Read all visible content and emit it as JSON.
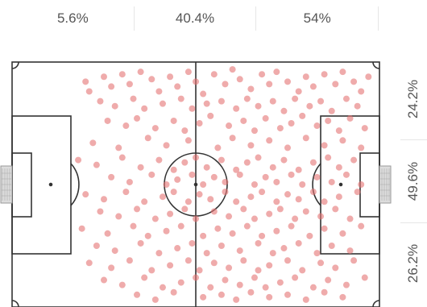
{
  "thirds": [
    "5.6%",
    "40.4%",
    "54%"
  ],
  "lanes": [
    "24.2%",
    "49.6%",
    "26.2%"
  ],
  "colors": {
    "dot": "#e57373",
    "pitch_line": "#333333",
    "label": "#555555"
  },
  "chart_data": {
    "type": "scatter",
    "title": "",
    "xlabel": "",
    "ylabel": "",
    "xlim": [
      0,
      100
    ],
    "ylim": [
      0,
      100
    ],
    "grid": false,
    "zones": {
      "thirds_x": [
        {
          "label": "5.6%",
          "range": [
            0,
            33.3
          ]
        },
        {
          "label": "40.4%",
          "range": [
            33.3,
            66.7
          ]
        },
        {
          "label": "54%",
          "range": [
            66.7,
            100
          ]
        }
      ],
      "lanes_y": [
        {
          "label": "24.2%",
          "range": [
            0,
            33.3
          ]
        },
        {
          "label": "49.6%",
          "range": [
            33.3,
            66.7
          ]
        },
        {
          "label": "26.2%",
          "range": [
            66.7,
            100
          ]
        }
      ]
    },
    "points": [
      [
        20,
        8
      ],
      [
        21,
        12
      ],
      [
        25,
        6
      ],
      [
        27,
        10
      ],
      [
        30,
        5
      ],
      [
        32,
        9
      ],
      [
        35,
        4
      ],
      [
        38,
        7
      ],
      [
        40,
        12
      ],
      [
        43,
        6
      ],
      [
        45,
        10
      ],
      [
        48,
        4
      ],
      [
        50,
        8
      ],
      [
        52,
        13
      ],
      [
        55,
        5
      ],
      [
        58,
        9
      ],
      [
        60,
        3
      ],
      [
        62,
        7
      ],
      [
        65,
        11
      ],
      [
        68,
        5
      ],
      [
        70,
        9
      ],
      [
        72,
        4
      ],
      [
        75,
        8
      ],
      [
        78,
        12
      ],
      [
        80,
        6
      ],
      [
        82,
        10
      ],
      [
        85,
        5
      ],
      [
        88,
        9
      ],
      [
        90,
        4
      ],
      [
        93,
        8
      ],
      [
        95,
        12
      ],
      [
        97,
        6
      ],
      [
        24,
        16
      ],
      [
        28,
        18
      ],
      [
        33,
        15
      ],
      [
        36,
        19
      ],
      [
        41,
        17
      ],
      [
        46,
        15
      ],
      [
        49,
        19
      ],
      [
        53,
        17
      ],
      [
        57,
        16
      ],
      [
        61,
        19
      ],
      [
        64,
        15
      ],
      [
        67,
        18
      ],
      [
        71,
        16
      ],
      [
        74,
        20
      ],
      [
        77,
        15
      ],
      [
        81,
        18
      ],
      [
        84,
        16
      ],
      [
        87,
        20
      ],
      [
        91,
        15
      ],
      [
        94,
        18
      ],
      [
        26,
        24
      ],
      [
        31,
        26
      ],
      [
        34,
        23
      ],
      [
        39,
        27
      ],
      [
        44,
        24
      ],
      [
        47,
        28
      ],
      [
        51,
        25
      ],
      [
        54,
        22
      ],
      [
        59,
        26
      ],
      [
        63,
        24
      ],
      [
        66,
        28
      ],
      [
        69,
        23
      ],
      [
        73,
        27
      ],
      [
        76,
        25
      ],
      [
        79,
        22
      ],
      [
        83,
        26
      ],
      [
        86,
        24
      ],
      [
        89,
        28
      ],
      [
        92,
        23
      ],
      [
        96,
        27
      ],
      [
        22,
        33
      ],
      [
        29,
        35
      ],
      [
        37,
        31
      ],
      [
        42,
        34
      ],
      [
        48,
        32
      ],
      [
        56,
        35
      ],
      [
        60,
        31
      ],
      [
        65,
        34
      ],
      [
        70,
        32
      ],
      [
        75,
        35
      ],
      [
        80,
        31
      ],
      [
        85,
        34
      ],
      [
        90,
        32
      ],
      [
        95,
        35
      ],
      [
        18,
        40
      ],
      [
        23,
        42
      ],
      [
        30,
        39
      ],
      [
        35,
        43
      ],
      [
        40,
        40
      ],
      [
        44,
        44
      ],
      [
        47,
        41
      ],
      [
        50,
        39
      ],
      [
        53,
        43
      ],
      [
        57,
        40
      ],
      [
        61,
        44
      ],
      [
        64,
        41
      ],
      [
        67,
        39
      ],
      [
        71,
        43
      ],
      [
        74,
        40
      ],
      [
        78,
        44
      ],
      [
        82,
        41
      ],
      [
        86,
        39
      ],
      [
        89,
        43
      ],
      [
        93,
        40
      ],
      [
        27,
        47
      ],
      [
        32,
        49
      ],
      [
        38,
        46
      ],
      [
        42,
        50
      ],
      [
        45,
        48
      ],
      [
        49,
        46
      ],
      [
        52,
        50
      ],
      [
        55,
        47
      ],
      [
        58,
        49
      ],
      [
        62,
        46
      ],
      [
        66,
        50
      ],
      [
        69,
        47
      ],
      [
        72,
        49
      ],
      [
        76,
        46
      ],
      [
        79,
        50
      ],
      [
        83,
        47
      ],
      [
        87,
        49
      ],
      [
        91,
        46
      ],
      [
        95,
        50
      ],
      [
        20,
        54
      ],
      [
        25,
        56
      ],
      [
        31,
        53
      ],
      [
        36,
        57
      ],
      [
        41,
        55
      ],
      [
        44,
        53
      ],
      [
        48,
        57
      ],
      [
        51,
        54
      ],
      [
        54,
        56
      ],
      [
        58,
        53
      ],
      [
        61,
        57
      ],
      [
        65,
        55
      ],
      [
        68,
        53
      ],
      [
        72,
        57
      ],
      [
        75,
        54
      ],
      [
        78,
        56
      ],
      [
        82,
        53
      ],
      [
        85,
        57
      ],
      [
        89,
        55
      ],
      [
        94,
        53
      ],
      [
        24,
        61
      ],
      [
        29,
        63
      ],
      [
        34,
        60
      ],
      [
        39,
        64
      ],
      [
        43,
        62
      ],
      [
        47,
        60
      ],
      [
        50,
        64
      ],
      [
        55,
        61
      ],
      [
        59,
        63
      ],
      [
        63,
        60
      ],
      [
        66,
        64
      ],
      [
        70,
        62
      ],
      [
        73,
        60
      ],
      [
        77,
        64
      ],
      [
        80,
        61
      ],
      [
        84,
        63
      ],
      [
        88,
        60
      ],
      [
        92,
        64
      ],
      [
        19,
        68
      ],
      [
        26,
        70
      ],
      [
        33,
        67
      ],
      [
        37,
        71
      ],
      [
        42,
        69
      ],
      [
        46,
        67
      ],
      [
        52,
        71
      ],
      [
        56,
        68
      ],
      [
        60,
        70
      ],
      [
        64,
        67
      ],
      [
        68,
        71
      ],
      [
        72,
        69
      ],
      [
        76,
        67
      ],
      [
        81,
        71
      ],
      [
        85,
        68
      ],
      [
        90,
        70
      ],
      [
        95,
        67
      ],
      [
        23,
        75
      ],
      [
        28,
        77
      ],
      [
        35,
        74
      ],
      [
        40,
        78
      ],
      [
        45,
        76
      ],
      [
        49,
        74
      ],
      [
        53,
        78
      ],
      [
        57,
        75
      ],
      [
        62,
        77
      ],
      [
        67,
        74
      ],
      [
        71,
        78
      ],
      [
        74,
        76
      ],
      [
        78,
        74
      ],
      [
        83,
        78
      ],
      [
        87,
        75
      ],
      [
        92,
        77
      ],
      [
        21,
        82
      ],
      [
        27,
        84
      ],
      [
        32,
        81
      ],
      [
        38,
        85
      ],
      [
        43,
        83
      ],
      [
        48,
        81
      ],
      [
        51,
        85
      ],
      [
        55,
        82
      ],
      [
        59,
        84
      ],
      [
        63,
        81
      ],
      [
        67,
        85
      ],
      [
        70,
        83
      ],
      [
        75,
        81
      ],
      [
        79,
        85
      ],
      [
        84,
        82
      ],
      [
        88,
        84
      ],
      [
        93,
        81
      ],
      [
        25,
        89
      ],
      [
        30,
        91
      ],
      [
        36,
        88
      ],
      [
        41,
        92
      ],
      [
        46,
        90
      ],
      [
        50,
        88
      ],
      [
        54,
        92
      ],
      [
        58,
        89
      ],
      [
        62,
        91
      ],
      [
        66,
        88
      ],
      [
        69,
        92
      ],
      [
        73,
        90
      ],
      [
        77,
        88
      ],
      [
        82,
        92
      ],
      [
        86,
        89
      ],
      [
        91,
        91
      ],
      [
        96,
        88
      ],
      [
        34,
        95
      ],
      [
        39,
        97
      ],
      [
        44,
        94
      ],
      [
        52,
        96
      ],
      [
        57,
        95
      ],
      [
        61,
        97
      ],
      [
        65,
        94
      ],
      [
        70,
        96
      ],
      [
        75,
        95
      ],
      [
        80,
        97
      ],
      [
        85,
        94
      ],
      [
        90,
        96
      ]
    ]
  }
}
